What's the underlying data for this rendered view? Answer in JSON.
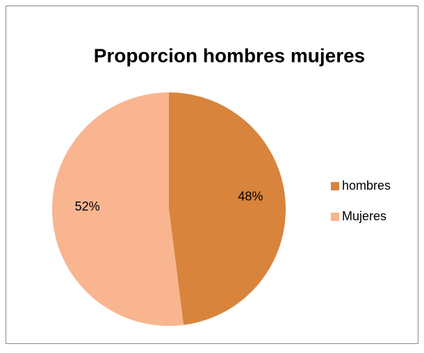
{
  "chart_data": {
    "type": "pie",
    "title": "Proporcion hombres mujeres",
    "categories": [
      "hombres",
      "Mujeres"
    ],
    "values": [
      48,
      52
    ],
    "value_labels": [
      "48%",
      "52%"
    ],
    "colors": [
      "#d8843d",
      "#f9b58f"
    ],
    "legend": "right"
  }
}
